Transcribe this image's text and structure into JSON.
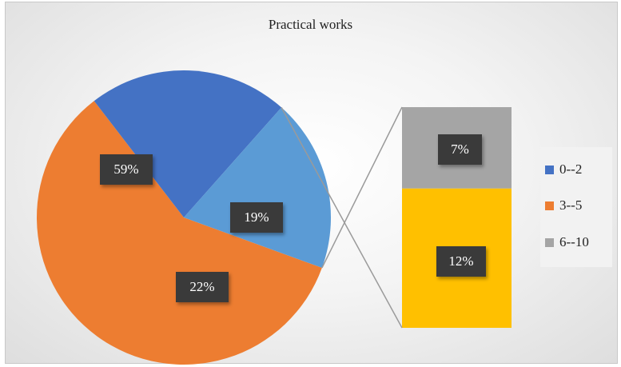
{
  "chart_data": {
    "type": "pie",
    "subtype": "bar-of-pie",
    "title": "Practical works",
    "slices": [
      {
        "label": "3--5",
        "value": 59,
        "display": "59%",
        "color": "#ED7D31"
      },
      {
        "label": "0--2",
        "value": 22,
        "display": "22%",
        "color": "#4472C4"
      },
      {
        "label": "6--10",
        "value": 19,
        "display": "19%",
        "color": "#5B9BD5"
      }
    ],
    "secondary_bar": [
      {
        "value": 12,
        "display": "12%",
        "color": "#FFC000"
      },
      {
        "value": 7,
        "display": "7%",
        "color": "#A5A5A5"
      }
    ],
    "legend": {
      "position": "right",
      "entries": [
        {
          "label": "0--2",
          "color": "#4472C4"
        },
        {
          "label": "3--5",
          "color": "#ED7D31"
        },
        {
          "label": "6--10",
          "color": "#A5A5A5"
        }
      ]
    }
  }
}
